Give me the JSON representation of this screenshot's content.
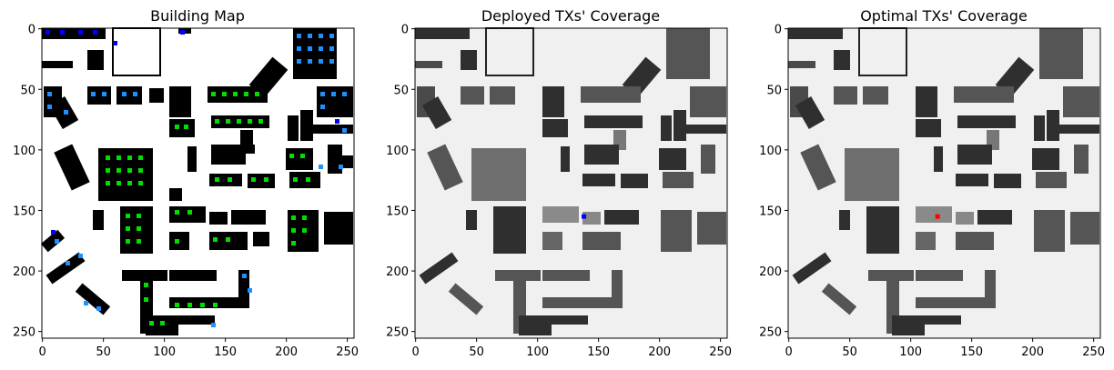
{
  "chart_data": [
    {
      "type": "heatmap",
      "title": "Building Map",
      "x_ticks": [
        "0",
        "50",
        "100",
        "150",
        "200",
        "250"
      ],
      "y_ticks": [
        "0",
        "50",
        "100",
        "150",
        "200",
        "250"
      ],
      "xlim": [
        0,
        255
      ],
      "ylim": [
        255,
        0
      ],
      "colors": {
        "background": "#ffffff",
        "building": "#000000",
        "markers": [
          "#00ff00",
          "#1e90ff",
          "#0000ff",
          "#66ff00"
        ]
      }
    },
    {
      "type": "heatmap",
      "title": "Deployed TXs' Coverage",
      "x_ticks": [
        "0",
        "50",
        "100",
        "150",
        "200",
        "250"
      ],
      "y_ticks": [
        "0",
        "50",
        "100",
        "150",
        "200",
        "250"
      ],
      "xlim": [
        0,
        255
      ],
      "ylim": [
        255,
        0
      ],
      "transmitter": {
        "x": 138,
        "y": 155,
        "color": "#0000ff"
      },
      "colors": {
        "background": "#f0f0f0",
        "building_dark": "#2e2e2e",
        "building_mid": "#555555",
        "building_light": "#8a8a8a"
      }
    },
    {
      "type": "heatmap",
      "title": "Optimal TXs' Coverage",
      "x_ticks": [
        "0",
        "50",
        "100",
        "150",
        "200",
        "250"
      ],
      "y_ticks": [
        "0",
        "50",
        "100",
        "150",
        "200",
        "250"
      ],
      "xlim": [
        0,
        255
      ],
      "ylim": [
        255,
        0
      ],
      "transmitter": {
        "x": 122,
        "y": 155,
        "color": "#ff0000"
      },
      "colors": {
        "background": "#f0f0f0",
        "building_dark": "#2e2e2e",
        "building_mid": "#555555",
        "building_light": "#8a8a8a"
      }
    }
  ]
}
